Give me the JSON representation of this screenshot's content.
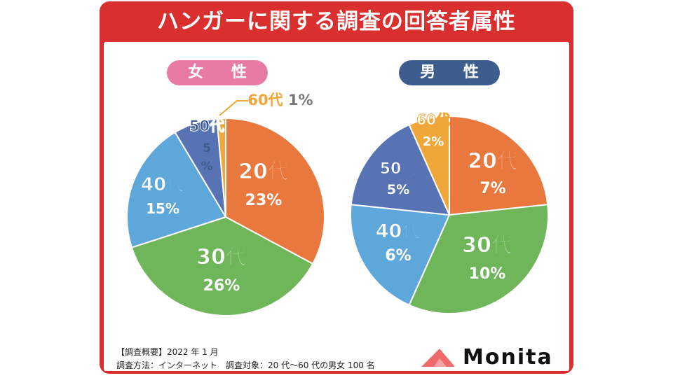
{
  "title": "ハンガーに関する調査の回答者属性",
  "charts": {
    "female": {
      "label": "女性",
      "label_text": "女 性"
    },
    "male": {
      "label": "男性",
      "label_text": "男 性"
    }
  },
  "chart_data": [
    {
      "type": "pie",
      "title": "女性",
      "categories": [
        "20代",
        "30代",
        "40代",
        "50代",
        "60代"
      ],
      "values": [
        23,
        26,
        15,
        5,
        1
      ],
      "labels": [
        "23%",
        "26%",
        "15%",
        "5%",
        "1%"
      ],
      "start": "top, clockwise",
      "colors": [
        "#e9783f",
        "#6fb55a",
        "#5ea7da",
        "#5773b4",
        "#f0a73a"
      ]
    },
    {
      "type": "pie",
      "title": "男性",
      "categories": [
        "20代",
        "30代",
        "40代",
        "50代",
        "60代"
      ],
      "values": [
        7,
        10,
        6,
        5,
        2
      ],
      "labels": [
        "7%",
        "10%",
        "6%",
        "5%",
        "2%"
      ],
      "start": "top, clockwise",
      "colors": [
        "#e9783f",
        "#6fb55a",
        "#5ea7da",
        "#5773b4",
        "#f0a73a"
      ]
    }
  ],
  "footnote": {
    "line1": "【調査概要】2022 年 1 月",
    "line2": "調査方法：インターネット　調査対象：20 代〜60 代の男女 100 名"
  },
  "brand": {
    "name": "Monita",
    "color": "#ef6b6b"
  }
}
